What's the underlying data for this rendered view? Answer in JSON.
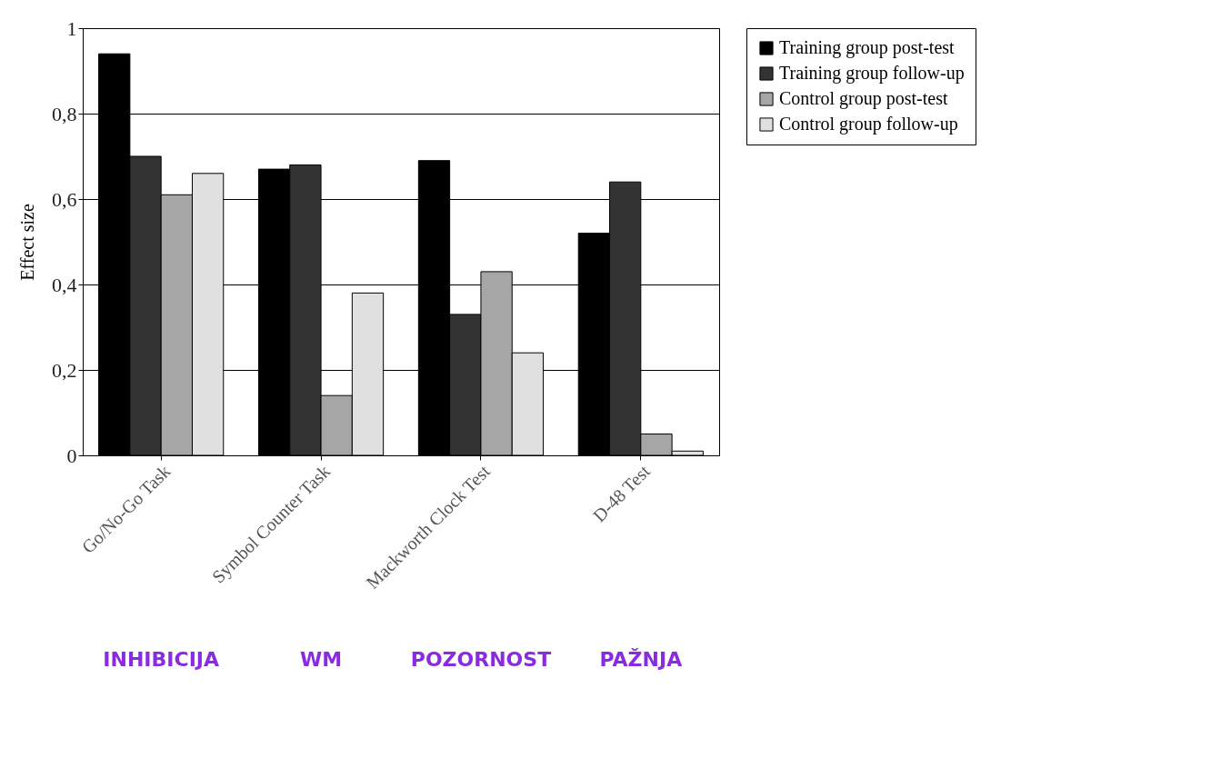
{
  "chart_data": {
    "type": "bar",
    "ylabel": "Effect size",
    "categories": [
      "Go/No-Go Task",
      "Symbol Counter Task",
      "Mackworth Clock Test",
      "D-48 Test"
    ],
    "series": [
      {
        "name": "Training group post-test",
        "color": "#000000",
        "values": [
          0.94,
          0.67,
          0.69,
          0.52
        ]
      },
      {
        "name": "Training group follow-up",
        "color": "#333333",
        "values": [
          0.7,
          0.68,
          0.33,
          0.64
        ]
      },
      {
        "name": "Control group post-test",
        "color": "#a6a6a6",
        "values": [
          0.61,
          0.14,
          0.43,
          0.05
        ]
      },
      {
        "name": "Control group follow-up",
        "color": "#e0e0e0",
        "values": [
          0.66,
          0.38,
          0.24,
          0.01
        ]
      }
    ],
    "ylim": [
      0,
      1
    ],
    "yticks": [
      0,
      {
        "value": 0.2,
        "label": "0,2"
      },
      {
        "value": 0.4,
        "label": "0,4"
      },
      {
        "value": 0.6,
        "label": "0,6"
      },
      {
        "value": 0.8,
        "label": "0,8"
      },
      1
    ],
    "grid": "y",
    "legend": "top right",
    "annotations": [
      "INHIBICIJA",
      "WM",
      "POZORNOST",
      "PAŽNJA"
    ]
  }
}
